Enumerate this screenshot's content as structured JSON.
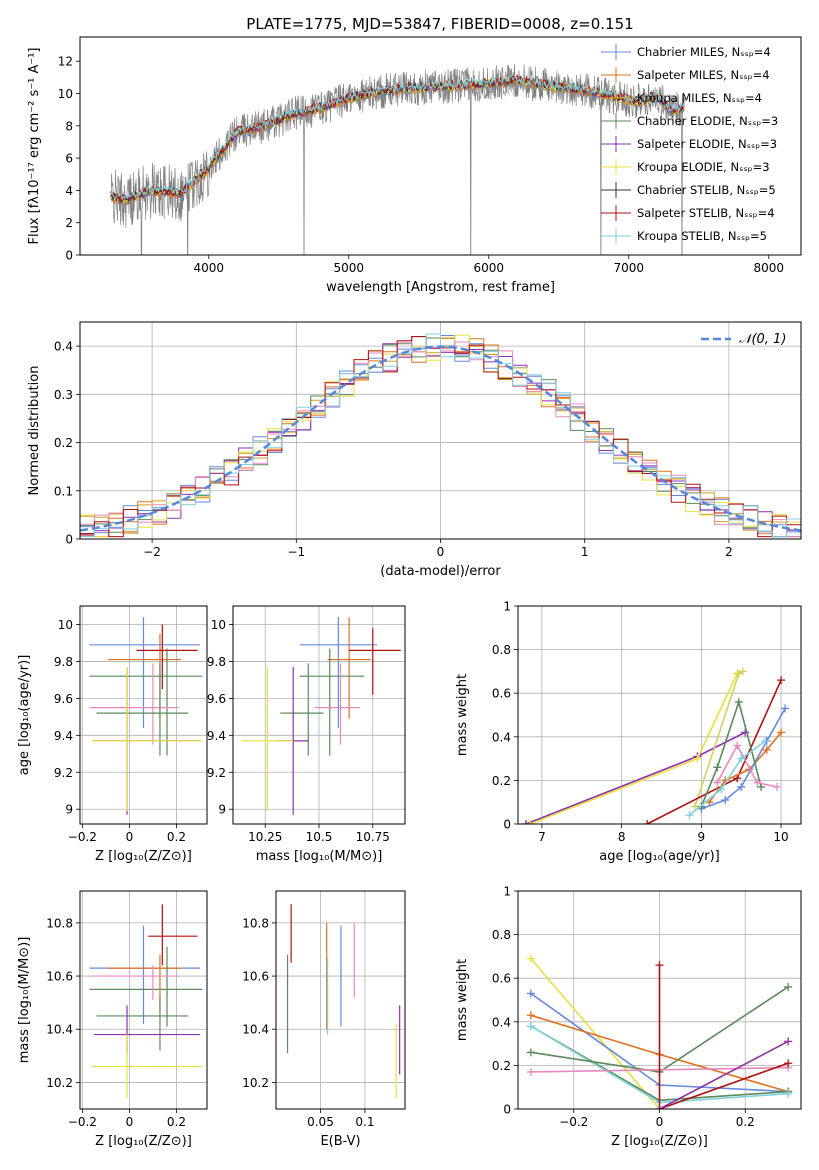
{
  "figure": {
    "title": "PLATE=1775, MJD=53847, FIBERID=0008, z=0.151"
  },
  "chart_data": [
    {
      "id": "spectrum",
      "type": "line",
      "xlabel": "wavelength [Angstrom, rest frame]",
      "ylabel": "Flux [fλ10⁻¹⁷ erg cm⁻² s⁻¹ A⁻¹]",
      "xlim": [
        3080,
        8230
      ],
      "ylim": [
        0,
        13.5
      ],
      "xticks": [
        4000,
        5000,
        6000,
        7000,
        8000
      ],
      "yticks": [
        0,
        2,
        4,
        6,
        8,
        10,
        12
      ],
      "grid": false,
      "legend_position": "upper-right",
      "data_color": "#808080",
      "data_breaks": [
        3520,
        3850,
        4680,
        5870,
        6800,
        7380
      ],
      "model_anchors": {
        "x": [
          3300,
          3400,
          3600,
          3800,
          4000,
          4200,
          4400,
          4600,
          4800,
          5000,
          5200,
          5400,
          5600,
          5800,
          6000,
          6200,
          6400,
          6600,
          6800,
          7000,
          7100,
          7200,
          7300,
          7400
        ],
        "y": [
          3.6,
          3.4,
          4.0,
          3.8,
          5.4,
          7.6,
          8.0,
          8.7,
          9.1,
          9.7,
          10.1,
          10.3,
          10.4,
          10.5,
          10.6,
          10.8,
          10.5,
          10.3,
          10.0,
          9.6,
          9.5,
          9.9,
          8.9,
          9.2
        ]
      },
      "series": [
        {
          "name": "Chabrier MILES, Nₛₛₚ=4",
          "color": "#6688dd"
        },
        {
          "name": "Salpeter MILES, Nₛₛₚ=4",
          "color": "#e07020"
        },
        {
          "name": "Kroupa MILES, Nₛₛₚ=4",
          "color": "#d4a020"
        },
        {
          "name": "Chabrier ELODIE, Nₛₛₚ=3",
          "color": "#5a8a5a"
        },
        {
          "name": "Salpeter ELODIE, Nₛₛₚ=3",
          "color": "#9030b0"
        },
        {
          "name": "Kroupa ELODIE, Nₛₛₚ=3",
          "color": "#e8e040"
        },
        {
          "name": "Chabrier STELIB, Nₛₛₚ=5",
          "color": "#333333"
        },
        {
          "name": "Salpeter STELIB, Nₛₛₚ=4",
          "color": "#b01010"
        },
        {
          "name": "Kroupa STELIB, Nₛₛₚ=5",
          "color": "#80d0e0"
        }
      ]
    },
    {
      "id": "residual-hist",
      "type": "step",
      "xlabel": "(data-model)/error",
      "ylabel": "Normed distribution",
      "xlim": [
        -2.5,
        2.5
      ],
      "ylim": [
        0,
        0.45
      ],
      "xticks": [
        -2,
        -1,
        0,
        1,
        2
      ],
      "yticks": [
        0.0,
        0.1,
        0.2,
        0.3,
        0.4
      ],
      "grid": true,
      "bin_width": 0.1,
      "legend_position": "upper-right",
      "reference_curve": {
        "label": "𝒩(0, 1)",
        "type": "gaussian",
        "mean": 0,
        "sigma": 1,
        "color": "#5588dd"
      },
      "series": [
        {
          "color": "#6688dd"
        },
        {
          "color": "#e07020"
        },
        {
          "color": "#d4a020"
        },
        {
          "color": "#5a8a5a"
        },
        {
          "color": "#9030b0"
        },
        {
          "color": "#e8e040"
        },
        {
          "color": "#e888c0"
        },
        {
          "color": "#b01010"
        },
        {
          "color": "#80d0e0"
        }
      ]
    },
    {
      "id": "age-vs-z",
      "type": "errorbar",
      "xlabel": "Z [log₁₀(Z/Z⊙)]",
      "ylabel": "age  [log₁₀(age/yr)]",
      "xlim": [
        -0.21,
        0.33
      ],
      "ylim": [
        8.92,
        10.1
      ],
      "xticks": [
        -0.2,
        0.0,
        0.2
      ],
      "yticks": [
        9.0,
        9.2,
        9.4,
        9.6,
        9.8,
        10.0
      ],
      "grid": true,
      "points": [
        {
          "x": 0.06,
          "y": 9.89,
          "xerr": [
            0.23,
            0.24
          ],
          "yerr": [
            0.45,
            0.15
          ],
          "color": "#6688dd"
        },
        {
          "x": 0.13,
          "y": 9.81,
          "xerr": [
            0.22,
            0.09
          ],
          "yerr": [
            0.32,
            0.14
          ],
          "color": "#e07020"
        },
        {
          "x": 0.14,
          "y": 9.86,
          "xerr": [
            0.11,
            0.15
          ],
          "yerr": [
            0.21,
            0.14
          ],
          "color": "#b01010"
        },
        {
          "x": 0.16,
          "y": 9.72,
          "xerr": [
            0.33,
            0.15
          ],
          "yerr": [
            0.43,
            0.15
          ],
          "color": "#5a8a5a"
        },
        {
          "x": 0.1,
          "y": 9.55,
          "xerr": [
            0.27,
            0.11
          ],
          "yerr": [
            0.2,
            0.24
          ],
          "color": "#e888c0"
        },
        {
          "x": 0.13,
          "y": 9.52,
          "xerr": [
            0.27,
            0.12
          ],
          "yerr": [
            0.23,
            0.27
          ],
          "color": "#5a8a5a"
        },
        {
          "x": -0.01,
          "y": 9.37,
          "xerr": [
            0.14,
            0.31
          ],
          "yerr": [
            0.4,
            0.4
          ],
          "color": "#9030b0"
        },
        {
          "x": -0.01,
          "y": 9.37,
          "xerr": [
            0.15,
            0.32
          ],
          "yerr": [
            0.38,
            0.4
          ],
          "color": "#e8e040"
        }
      ]
    },
    {
      "id": "age-vs-mass",
      "type": "errorbar",
      "xlabel": "mass [log₁₀(M/M⊙)]",
      "ylabel": "",
      "xlim": [
        10.1,
        10.9
      ],
      "ylim": [
        8.92,
        10.1
      ],
      "xticks": [
        10.25,
        10.5,
        10.75
      ],
      "yticks": [
        9.0,
        9.2,
        9.4,
        9.6,
        9.8,
        10.0
      ],
      "grid": true,
      "points": [
        {
          "x": 10.59,
          "y": 9.89,
          "xerr": [
            0.18,
            0.18
          ],
          "yerr": [
            0.45,
            0.15
          ],
          "color": "#6688dd"
        },
        {
          "x": 10.64,
          "y": 9.81,
          "xerr": [
            0.1,
            0.1
          ],
          "yerr": [
            0.32,
            0.23
          ],
          "color": "#e07020"
        },
        {
          "x": 10.75,
          "y": 9.86,
          "xerr": [
            0.11,
            0.13
          ],
          "yerr": [
            0.24,
            0.12
          ],
          "color": "#b01010"
        },
        {
          "x": 10.55,
          "y": 9.72,
          "xerr": [
            0.14,
            0.16
          ],
          "yerr": [
            0.43,
            0.15
          ],
          "color": "#5a8a5a"
        },
        {
          "x": 10.6,
          "y": 9.55,
          "xerr": [
            0.12,
            0.09
          ],
          "yerr": [
            0.2,
            0.24
          ],
          "color": "#e888c0"
        },
        {
          "x": 10.45,
          "y": 9.52,
          "xerr": [
            0.13,
            0.07
          ],
          "yerr": [
            0.23,
            0.27
          ],
          "color": "#5a8a5a"
        },
        {
          "x": 10.38,
          "y": 9.37,
          "xerr": [
            0.07,
            0.07
          ],
          "yerr": [
            0.4,
            0.4
          ],
          "color": "#9030b0"
        },
        {
          "x": 10.26,
          "y": 9.37,
          "xerr": [
            0.12,
            0.12
          ],
          "yerr": [
            0.38,
            0.4
          ],
          "color": "#e8e040"
        }
      ]
    },
    {
      "id": "weight-vs-age",
      "type": "line",
      "xlabel": "age  [log₁₀(age/yr)]",
      "ylabel": "mass weight",
      "xlim": [
        6.7,
        10.25
      ],
      "ylim": [
        0,
        1.0
      ],
      "xticks": [
        7,
        8,
        9,
        10
      ],
      "yticks": [
        0.0,
        0.2,
        0.4,
        0.6,
        0.8,
        1.0
      ],
      "grid": true,
      "series": [
        {
          "color": "#9030b0",
          "x": [
            6.8,
            8.95,
            9.55
          ],
          "y": [
            0.0,
            0.31,
            0.42
          ]
        },
        {
          "color": "#e8e040",
          "x": [
            6.85,
            8.95,
            9.45
          ],
          "y": [
            0.0,
            0.3,
            0.69
          ]
        },
        {
          "color": "#d4d060",
          "x": [
            8.92,
            9.47,
            9.52
          ],
          "y": [
            0.08,
            0.69,
            0.7
          ]
        },
        {
          "color": "#b01010",
          "x": [
            8.32,
            9.45,
            10.0
          ],
          "y": [
            0.0,
            0.21,
            0.66
          ]
        },
        {
          "color": "#e07020",
          "x": [
            9.1,
            9.3,
            9.6,
            9.82,
            10.0
          ],
          "y": [
            0.1,
            0.2,
            0.25,
            0.34,
            0.42
          ]
        },
        {
          "color": "#6688dd",
          "x": [
            9.0,
            9.3,
            9.5,
            9.82,
            10.05
          ],
          "y": [
            0.07,
            0.11,
            0.17,
            0.38,
            0.53
          ]
        },
        {
          "color": "#5a8a5a",
          "x": [
            9.0,
            9.2,
            9.47,
            9.75
          ],
          "y": [
            0.08,
            0.26,
            0.56,
            0.17
          ]
        },
        {
          "color": "#e888c0",
          "x": [
            9.2,
            9.45,
            9.7,
            9.95
          ],
          "y": [
            0.19,
            0.36,
            0.19,
            0.17
          ]
        },
        {
          "color": "#80d0e0",
          "x": [
            8.85,
            9.25,
            9.5,
            9.8
          ],
          "y": [
            0.04,
            0.16,
            0.3,
            0.38
          ]
        }
      ]
    },
    {
      "id": "mass-vs-z",
      "type": "errorbar",
      "xlabel": "Z [log₁₀(Z/Z⊙)]",
      "ylabel": "mass [log₁₀(M/M⊙)]",
      "xlim": [
        -0.21,
        0.33
      ],
      "ylim": [
        10.1,
        10.92
      ],
      "xticks": [
        -0.2,
        0.0,
        0.2
      ],
      "yticks": [
        10.2,
        10.4,
        10.6,
        10.8
      ],
      "grid": true,
      "points": [
        {
          "x": 0.06,
          "y": 10.63,
          "xerr": [
            0.23,
            0.24
          ],
          "yerr": [
            0.21,
            0.16
          ],
          "color": "#6688dd"
        },
        {
          "x": 0.13,
          "y": 10.63,
          "xerr": [
            0.22,
            0.09
          ],
          "yerr": [
            0.16,
            0.05
          ],
          "color": "#e07020"
        },
        {
          "x": 0.14,
          "y": 10.75,
          "xerr": [
            0.06,
            0.15
          ],
          "yerr": [
            0.11,
            0.12
          ],
          "color": "#b01010"
        },
        {
          "x": 0.16,
          "y": 10.55,
          "xerr": [
            0.33,
            0.15
          ],
          "yerr": [
            0.14,
            0.16
          ],
          "color": "#5a8a5a"
        },
        {
          "x": 0.1,
          "y": 10.6,
          "xerr": [
            0.27,
            0.11
          ],
          "yerr": [
            0.09,
            0.04
          ],
          "color": "#e888c0"
        },
        {
          "x": 0.13,
          "y": 10.45,
          "xerr": [
            0.27,
            0.12
          ],
          "yerr": [
            0.13,
            0.07
          ],
          "color": "#5a8a5a"
        },
        {
          "x": -0.01,
          "y": 10.38,
          "xerr": [
            0.14,
            0.31
          ],
          "yerr": [
            0.07,
            0.11
          ],
          "color": "#9030b0"
        },
        {
          "x": -0.01,
          "y": 10.26,
          "xerr": [
            0.15,
            0.32
          ],
          "yerr": [
            0.12,
            0.12
          ],
          "color": "#e8e040"
        }
      ]
    },
    {
      "id": "mass-vs-ebv",
      "type": "errorbar",
      "xlabel": "E(B-V)",
      "ylabel": "",
      "xlim": [
        0.0,
        0.145
      ],
      "ylim": [
        10.1,
        10.92
      ],
      "xticks": [
        0.05,
        0.1
      ],
      "yticks": [
        10.2,
        10.4,
        10.6,
        10.8
      ],
      "grid": true,
      "points": [
        {
          "x": 0.017,
          "y": 10.73,
          "xerr": [
            0,
            0
          ],
          "yerr": [
            0.08,
            0.14
          ],
          "color": "#b01010"
        },
        {
          "x": 0.013,
          "y": 10.55,
          "xerr": [
            0,
            0
          ],
          "yerr": [
            0.24,
            0.13
          ],
          "color": "#5a8a5a"
        },
        {
          "x": 0.057,
          "y": 10.55,
          "xerr": [
            0,
            0
          ],
          "yerr": [
            0.15,
            0.25
          ],
          "color": "#e07020"
        },
        {
          "x": 0.058,
          "y": 10.52,
          "xerr": [
            0,
            0
          ],
          "yerr": [
            0.14,
            0.15
          ],
          "color": "#80d0e0"
        },
        {
          "x": 0.073,
          "y": 10.6,
          "xerr": [
            0,
            0
          ],
          "yerr": [
            0.19,
            0.19
          ],
          "color": "#6688dd"
        },
        {
          "x": 0.088,
          "y": 10.62,
          "xerr": [
            0,
            0
          ],
          "yerr": [
            0.1,
            0.18
          ],
          "color": "#e888c0"
        },
        {
          "x": 0.135,
          "y": 10.26,
          "xerr": [
            0,
            0
          ],
          "yerr": [
            0.12,
            0.16
          ],
          "color": "#e8e040"
        },
        {
          "x": 0.139,
          "y": 10.36,
          "xerr": [
            0,
            0
          ],
          "yerr": [
            0.13,
            0.13
          ],
          "color": "#9030b0"
        }
      ]
    },
    {
      "id": "weight-vs-z",
      "type": "line",
      "xlabel": "Z [log₁₀(Z/Z⊙)]",
      "ylabel": "mass weight",
      "xlim": [
        -0.33,
        0.33
      ],
      "ylim": [
        0,
        1.0
      ],
      "xticks": [
        -0.2,
        0.0,
        0.2
      ],
      "yticks": [
        0.0,
        0.2,
        0.4,
        0.6,
        0.8,
        1.0
      ],
      "grid": true,
      "series": [
        {
          "color": "#e8e040",
          "x": [
            -0.3,
            0.0,
            0.3
          ],
          "y": [
            0.69,
            0.0,
            0.31
          ]
        },
        {
          "color": "#6688dd",
          "x": [
            -0.3,
            0.0,
            0.3
          ],
          "y": [
            0.53,
            0.11,
            0.08
          ]
        },
        {
          "color": "#e07020",
          "x": [
            -0.3,
            0.0,
            0.3
          ],
          "y": [
            0.43,
            0.25,
            0.08
          ]
        },
        {
          "color": "#5a8a5a",
          "x": [
            -0.3,
            0.0,
            0.3
          ],
          "y": [
            0.38,
            0.04,
            0.08
          ]
        },
        {
          "color": "#80d0e0",
          "x": [
            -0.3,
            0.0,
            0.3
          ],
          "y": [
            0.38,
            0.03,
            0.07
          ]
        },
        {
          "color": "#5a8a5a",
          "x": [
            -0.3,
            0.0,
            0.3
          ],
          "y": [
            0.26,
            0.17,
            0.56
          ]
        },
        {
          "color": "#e888c0",
          "x": [
            -0.3,
            0.3
          ],
          "y": [
            0.17,
            0.19
          ]
        },
        {
          "color": "#b01010",
          "x": [
            0.0,
            0.0,
            0.3
          ],
          "y": [
            0.66,
            0.0,
            0.21
          ]
        },
        {
          "color": "#9030b0",
          "x": [
            0.0,
            0.3
          ],
          "y": [
            0.0,
            0.31
          ]
        }
      ]
    }
  ]
}
